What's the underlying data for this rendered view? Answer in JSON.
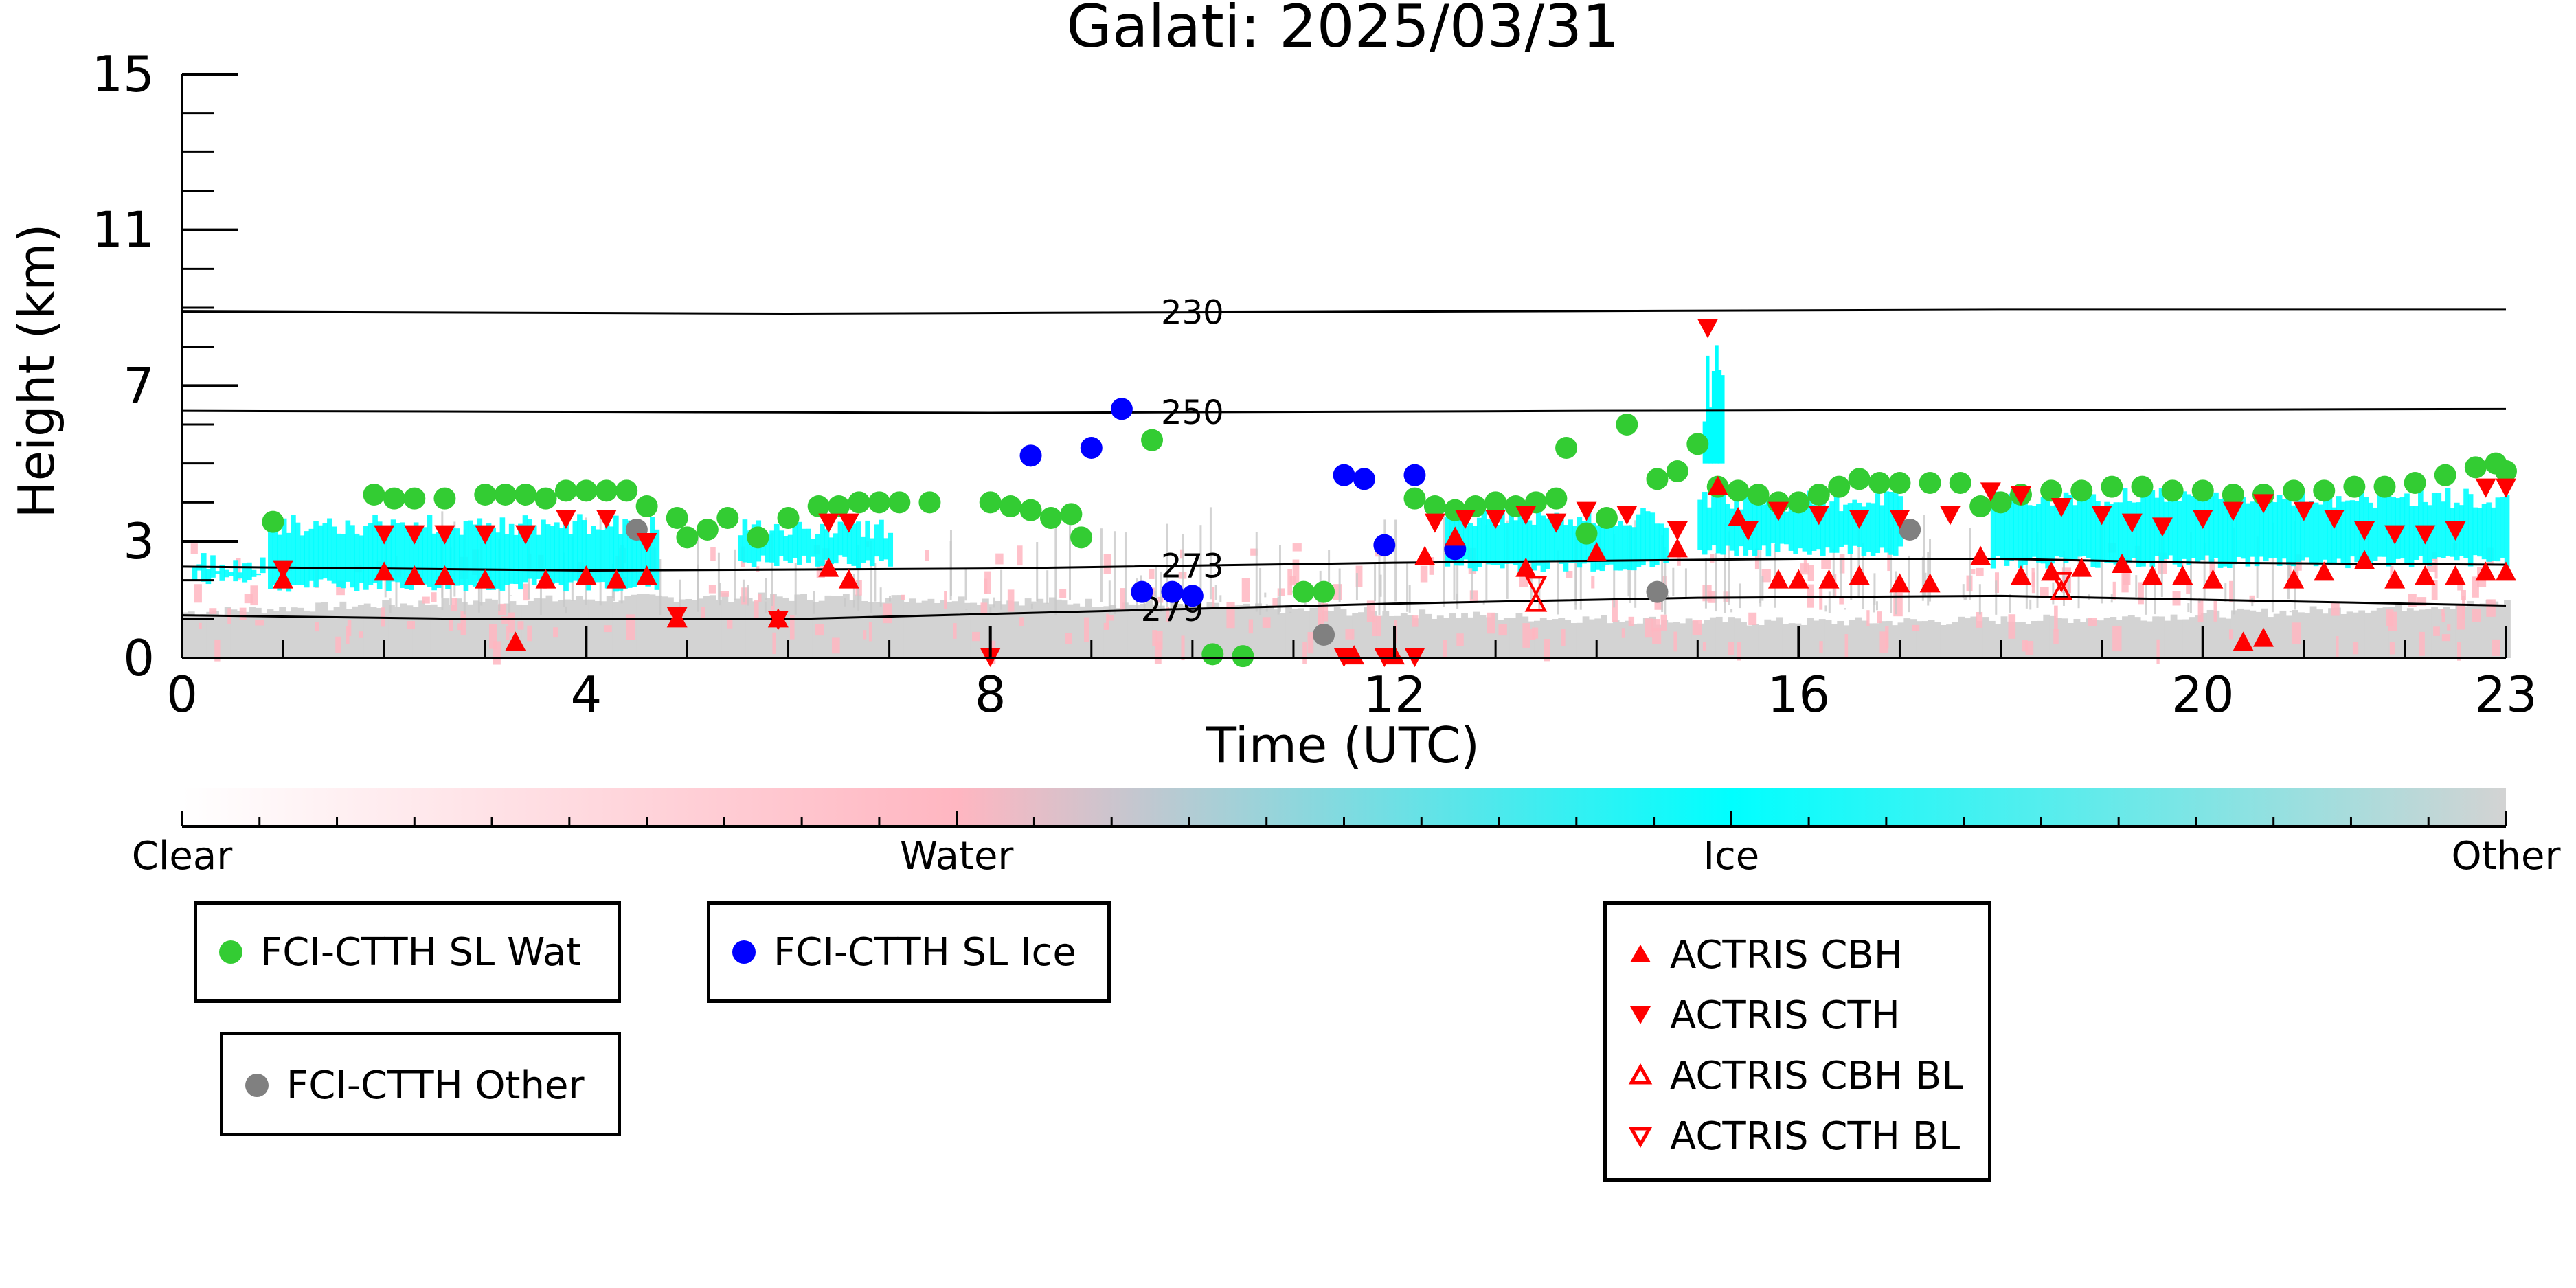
{
  "chart_data": {
    "type": "scatter",
    "title": "Galati: 2025/03/31",
    "xlabel": "Time (UTC)",
    "ylabel": "Height (km)",
    "xlim": [
      0,
      23
    ],
    "ylim": [
      0,
      15
    ],
    "x_ticks": [
      "0",
      "4",
      "8",
      "12",
      "16",
      "20",
      "23"
    ],
    "y_ticks": [
      "0",
      "3",
      "7",
      "11",
      "15"
    ],
    "y_tick_values": [
      0,
      3,
      7,
      11,
      15
    ],
    "x_tick_values": [
      0,
      4,
      8,
      12,
      16,
      20,
      23
    ],
    "background_layer": "cloud classification curtain (Clear / Water / Ice / Other)",
    "colorbar": {
      "labels": [
        "Clear",
        "Water",
        "Ice",
        "Other"
      ],
      "colors": [
        "#ffffff",
        "#ffb6c1",
        "#00ffff",
        "#d3d3d3"
      ]
    },
    "isotherms": [
      {
        "label": "230",
        "label_x": 10,
        "points": [
          [
            0,
            8.9
          ],
          [
            6,
            8.85
          ],
          [
            12,
            8.9
          ],
          [
            18,
            8.95
          ],
          [
            23,
            8.95
          ]
        ]
      },
      {
        "label": "250",
        "label_x": 10,
        "points": [
          [
            0,
            6.35
          ],
          [
            8,
            6.3
          ],
          [
            14,
            6.35
          ],
          [
            23,
            6.4
          ]
        ]
      },
      {
        "label": "273",
        "label_x": 10,
        "points": [
          [
            0,
            2.35
          ],
          [
            4,
            2.25
          ],
          [
            8,
            2.3
          ],
          [
            12,
            2.45
          ],
          [
            16,
            2.55
          ],
          [
            18,
            2.55
          ],
          [
            20,
            2.45
          ],
          [
            23,
            2.4
          ]
        ]
      },
      {
        "label": "279",
        "label_x": 9.8,
        "points": [
          [
            0,
            1.1
          ],
          [
            3,
            1.0
          ],
          [
            6,
            1.0
          ],
          [
            9,
            1.2
          ],
          [
            12,
            1.4
          ],
          [
            15,
            1.55
          ],
          [
            18,
            1.6
          ],
          [
            21,
            1.45
          ],
          [
            23,
            1.35
          ]
        ]
      }
    ],
    "series": [
      {
        "name": "FCI-CTTH SL Wat",
        "color": "#33cc33",
        "marker": "circle",
        "points": [
          [
            0.9,
            3.5
          ],
          [
            1.9,
            4.2
          ],
          [
            2.1,
            4.1
          ],
          [
            2.3,
            4.1
          ],
          [
            2.6,
            4.1
          ],
          [
            3.0,
            4.2
          ],
          [
            3.2,
            4.2
          ],
          [
            3.4,
            4.2
          ],
          [
            3.6,
            4.1
          ],
          [
            3.8,
            4.3
          ],
          [
            4.0,
            4.3
          ],
          [
            4.2,
            4.3
          ],
          [
            4.4,
            4.3
          ],
          [
            4.6,
            3.9
          ],
          [
            4.9,
            3.6
          ],
          [
            5.0,
            3.1
          ],
          [
            5.2,
            3.3
          ],
          [
            5.4,
            3.6
          ],
          [
            5.7,
            3.1
          ],
          [
            6.0,
            3.6
          ],
          [
            6.3,
            3.9
          ],
          [
            6.5,
            3.9
          ],
          [
            6.7,
            4.0
          ],
          [
            6.9,
            4.0
          ],
          [
            7.1,
            4.0
          ],
          [
            7.4,
            4.0
          ],
          [
            8.0,
            4.0
          ],
          [
            8.2,
            3.9
          ],
          [
            8.4,
            3.8
          ],
          [
            8.6,
            3.6
          ],
          [
            8.9,
            3.1
          ],
          [
            8.8,
            3.7
          ],
          [
            9.6,
            5.6
          ],
          [
            10.2,
            0.1
          ],
          [
            10.5,
            0.05
          ],
          [
            11.1,
            1.7
          ],
          [
            11.3,
            1.7
          ],
          [
            12.2,
            4.1
          ],
          [
            12.4,
            3.9
          ],
          [
            12.6,
            3.8
          ],
          [
            12.8,
            3.9
          ],
          [
            13.0,
            4.0
          ],
          [
            13.2,
            3.9
          ],
          [
            13.4,
            4.0
          ],
          [
            13.6,
            4.1
          ],
          [
            13.7,
            5.4
          ],
          [
            13.9,
            3.2
          ],
          [
            14.1,
            3.6
          ],
          [
            14.3,
            6.0
          ],
          [
            14.6,
            4.6
          ],
          [
            14.8,
            4.8
          ],
          [
            15.0,
            5.5
          ],
          [
            15.2,
            4.4
          ],
          [
            15.4,
            4.3
          ],
          [
            15.6,
            4.2
          ],
          [
            15.8,
            4.0
          ],
          [
            16.0,
            4.0
          ],
          [
            16.2,
            4.2
          ],
          [
            16.4,
            4.4
          ],
          [
            16.6,
            4.6
          ],
          [
            16.8,
            4.5
          ],
          [
            17.0,
            4.5
          ],
          [
            17.3,
            4.5
          ],
          [
            17.6,
            4.5
          ],
          [
            17.8,
            3.9
          ],
          [
            18.0,
            4.0
          ],
          [
            18.2,
            4.2
          ],
          [
            18.5,
            4.3
          ],
          [
            18.8,
            4.3
          ],
          [
            19.1,
            4.4
          ],
          [
            19.4,
            4.4
          ],
          [
            19.7,
            4.3
          ],
          [
            20.0,
            4.3
          ],
          [
            20.3,
            4.2
          ],
          [
            20.6,
            4.2
          ],
          [
            20.9,
            4.3
          ],
          [
            21.2,
            4.3
          ],
          [
            21.5,
            4.4
          ],
          [
            21.8,
            4.4
          ],
          [
            22.1,
            4.5
          ],
          [
            22.4,
            4.7
          ],
          [
            22.7,
            4.9
          ],
          [
            22.9,
            5.0
          ],
          [
            23.0,
            4.8
          ]
        ]
      },
      {
        "name": "FCI-CTTH SL Ice",
        "color": "#0000ff",
        "marker": "circle",
        "points": [
          [
            8.4,
            5.2
          ],
          [
            9.0,
            5.4
          ],
          [
            9.3,
            6.4
          ],
          [
            9.5,
            1.7
          ],
          [
            9.8,
            1.7
          ],
          [
            10.0,
            1.6
          ],
          [
            11.5,
            4.7
          ],
          [
            11.7,
            4.6
          ],
          [
            11.9,
            2.9
          ],
          [
            12.2,
            4.7
          ],
          [
            12.6,
            2.8
          ]
        ]
      },
      {
        "name": "FCI-CTTH Other",
        "color": "#808080",
        "marker": "circle",
        "points": [
          [
            4.5,
            3.3
          ],
          [
            11.3,
            0.6
          ],
          [
            14.6,
            1.7
          ],
          [
            17.1,
            3.3
          ]
        ]
      },
      {
        "name": "ACTRIS CBH",
        "color": "#ff0000",
        "marker": "triangle-up",
        "points": [
          [
            1.0,
            2.0
          ],
          [
            2.0,
            2.2
          ],
          [
            2.3,
            2.1
          ],
          [
            2.6,
            2.1
          ],
          [
            3.0,
            2.0
          ],
          [
            3.3,
            0.4
          ],
          [
            3.6,
            2.0
          ],
          [
            4.0,
            2.1
          ],
          [
            4.3,
            2.0
          ],
          [
            4.6,
            2.1
          ],
          [
            4.9,
            1.0
          ],
          [
            5.9,
            1.0
          ],
          [
            6.4,
            2.3
          ],
          [
            6.6,
            2.0
          ],
          [
            11.6,
            0.05
          ],
          [
            12.0,
            0.05
          ],
          [
            12.3,
            2.6
          ],
          [
            12.6,
            3.1
          ],
          [
            13.3,
            2.3
          ],
          [
            14.0,
            2.7
          ],
          [
            14.8,
            2.8
          ],
          [
            15.2,
            4.4
          ],
          [
            15.4,
            3.6
          ],
          [
            15.8,
            2.0
          ],
          [
            16.0,
            2.0
          ],
          [
            16.3,
            2.0
          ],
          [
            16.6,
            2.1
          ],
          [
            17.0,
            1.9
          ],
          [
            17.3,
            1.9
          ],
          [
            17.8,
            2.6
          ],
          [
            18.2,
            2.1
          ],
          [
            18.5,
            2.2
          ],
          [
            18.8,
            2.3
          ],
          [
            19.2,
            2.4
          ],
          [
            19.5,
            2.1
          ],
          [
            19.8,
            2.1
          ],
          [
            20.1,
            2.0
          ],
          [
            20.4,
            0.4
          ],
          [
            20.6,
            0.5
          ],
          [
            20.9,
            2.0
          ],
          [
            21.2,
            2.2
          ],
          [
            21.6,
            2.5
          ],
          [
            21.9,
            2.0
          ],
          [
            22.2,
            2.1
          ],
          [
            22.5,
            2.1
          ],
          [
            22.8,
            2.2
          ],
          [
            23.0,
            2.2
          ]
        ]
      },
      {
        "name": "ACTRIS CTH",
        "color": "#ff0000",
        "marker": "triangle-down",
        "points": [
          [
            1.0,
            2.3
          ],
          [
            2.0,
            3.2
          ],
          [
            2.3,
            3.2
          ],
          [
            2.6,
            3.2
          ],
          [
            3.0,
            3.2
          ],
          [
            3.4,
            3.2
          ],
          [
            3.8,
            3.6
          ],
          [
            4.2,
            3.6
          ],
          [
            4.6,
            3.0
          ],
          [
            4.9,
            1.1
          ],
          [
            5.9,
            1.0
          ],
          [
            6.4,
            3.5
          ],
          [
            6.6,
            3.5
          ],
          [
            8.0,
            0.05
          ],
          [
            11.5,
            0.05
          ],
          [
            11.9,
            0.05
          ],
          [
            12.2,
            0.05
          ],
          [
            12.4,
            3.5
          ],
          [
            12.7,
            3.6
          ],
          [
            13.0,
            3.6
          ],
          [
            13.3,
            3.7
          ],
          [
            13.6,
            3.5
          ],
          [
            13.9,
            3.8
          ],
          [
            14.3,
            3.7
          ],
          [
            14.8,
            3.3
          ],
          [
            15.1,
            8.5
          ],
          [
            15.5,
            3.3
          ],
          [
            15.8,
            3.8
          ],
          [
            16.2,
            3.7
          ],
          [
            16.6,
            3.6
          ],
          [
            17.0,
            3.6
          ],
          [
            17.5,
            3.7
          ],
          [
            17.9,
            4.3
          ],
          [
            18.2,
            4.2
          ],
          [
            18.6,
            3.9
          ],
          [
            19.0,
            3.7
          ],
          [
            19.3,
            3.5
          ],
          [
            19.6,
            3.4
          ],
          [
            20.0,
            3.6
          ],
          [
            20.3,
            3.8
          ],
          [
            20.6,
            4.0
          ],
          [
            21.0,
            3.8
          ],
          [
            21.3,
            3.6
          ],
          [
            21.6,
            3.3
          ],
          [
            21.9,
            3.2
          ],
          [
            22.2,
            3.2
          ],
          [
            22.5,
            3.3
          ],
          [
            22.8,
            4.4
          ],
          [
            23.0,
            4.4
          ]
        ]
      },
      {
        "name": "ACTRIS CBH BL",
        "color": "#ff0000",
        "marker": "triangle-up-open",
        "points": [
          [
            13.4,
            1.4
          ],
          [
            18.6,
            1.7
          ]
        ]
      },
      {
        "name": "ACTRIS CTH BL",
        "color": "#ff0000",
        "marker": "triangle-down-open",
        "points": [
          [
            13.4,
            1.9
          ],
          [
            18.6,
            2.0
          ]
        ]
      }
    ],
    "legend_placement": "below"
  }
}
